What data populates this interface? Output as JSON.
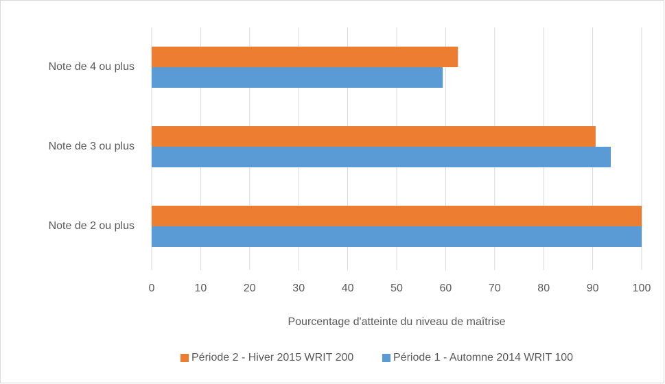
{
  "chart_data": {
    "type": "barh",
    "categories": [
      "Note de 4 ou plus",
      "Note de 3 ou plus",
      "Note de 2 ou plus"
    ],
    "series": [
      {
        "name": "Période 2 - Hiver 2015 WRIT 200",
        "color": "#ed7d31",
        "values": [
          62.5,
          90.6,
          100
        ]
      },
      {
        "name": "Période 1 - Automne 2014 WRIT 100",
        "color": "#5b9bd5",
        "values": [
          59.4,
          93.7,
          100
        ]
      }
    ],
    "xlabel": "Pourcentage d'atteinte du niveau de maîtrise",
    "xlim": [
      0,
      100
    ],
    "xticks": [
      0,
      10,
      20,
      30,
      40,
      50,
      60,
      70,
      80,
      90,
      100
    ],
    "grid": true,
    "legend": "bottom"
  }
}
